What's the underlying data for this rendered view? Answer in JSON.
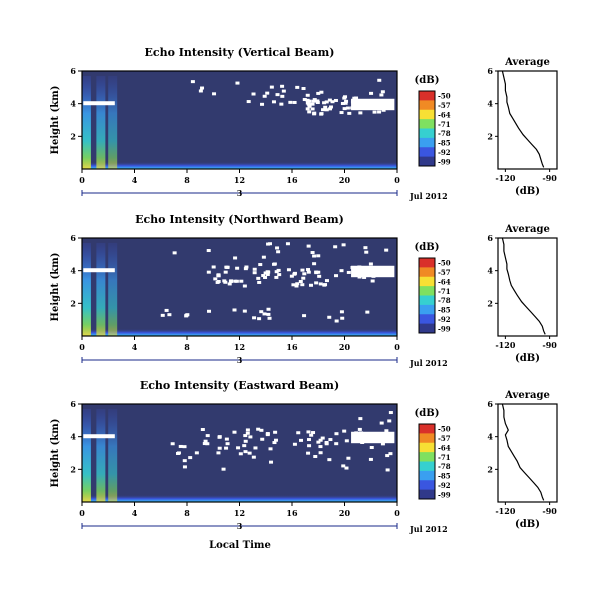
{
  "figure": {
    "date_label": "Jul 2012",
    "xlabel": "Local Time",
    "day_marker": "3",
    "colorbar_unit": "(dB)",
    "colorbar_ticks": [
      "-50",
      "-57",
      "-64",
      "-71",
      "-78",
      "-85",
      "-92",
      "-99"
    ],
    "colorbar_colors": [
      "#d9302a",
      "#f08a24",
      "#f7e034",
      "#7fe060",
      "#36d0d0",
      "#3a9ff0",
      "#3a56e0",
      "#30398a"
    ],
    "background_color": "#323a6e"
  },
  "chart_data": [
    {
      "type": "heatmap",
      "title": "Echo Intensity (Vertical Beam)",
      "ylabel": "Height (km)",
      "x_ticks": [
        "0",
        "4",
        "8",
        "12",
        "16",
        "20",
        "0"
      ],
      "y_ticks": [
        "6",
        "4",
        "2"
      ],
      "xlim": [
        0,
        24
      ],
      "ylim": [
        0,
        6
      ],
      "side_panel": {
        "type": "line",
        "title": "Average",
        "xlabel": "(dB)",
        "x_ticks": [
          "-120",
          "-90"
        ],
        "y_ticks": [
          "6",
          "4",
          "2"
        ],
        "xlim": [
          -125,
          -85
        ],
        "ylim": [
          0,
          6
        ],
        "x": [
          -122,
          -121,
          -120,
          -120,
          -119,
          -119,
          -118,
          -117,
          -115,
          -113,
          -111,
          -108,
          -105,
          -102,
          -99,
          -97,
          -96,
          -95,
          -94
        ],
        "y": [
          6.0,
          5.6,
          5.2,
          4.8,
          4.4,
          4.1,
          3.8,
          3.4,
          3.1,
          2.8,
          2.5,
          2.1,
          1.8,
          1.5,
          1.2,
          0.9,
          0.6,
          0.3,
          0.1
        ]
      }
    },
    {
      "type": "heatmap",
      "title": "Echo Intensity (Northward Beam)",
      "ylabel": "Height (km)",
      "x_ticks": [
        "0",
        "4",
        "8",
        "12",
        "16",
        "20",
        "0"
      ],
      "y_ticks": [
        "6",
        "4",
        "2"
      ],
      "xlim": [
        0,
        24
      ],
      "ylim": [
        0,
        6
      ],
      "side_panel": {
        "type": "line",
        "title": "Average",
        "xlabel": "(dB)",
        "x_ticks": [
          "-120",
          "-90"
        ],
        "y_ticks": [
          "6",
          "4",
          "2"
        ],
        "xlim": [
          -125,
          -85
        ],
        "ylim": [
          0,
          6
        ],
        "x": [
          -122,
          -121,
          -121,
          -120,
          -119,
          -119,
          -118,
          -117,
          -116,
          -114,
          -112,
          -109,
          -106,
          -103,
          -100,
          -97,
          -95,
          -94,
          -93
        ],
        "y": [
          6.0,
          5.6,
          5.2,
          4.8,
          4.4,
          4.1,
          3.8,
          3.4,
          3.1,
          2.8,
          2.5,
          2.1,
          1.8,
          1.5,
          1.2,
          0.9,
          0.6,
          0.3,
          0.1
        ]
      }
    },
    {
      "type": "heatmap",
      "title": "Echo Intensity (Eastward Beam)",
      "ylabel": "Height (km)",
      "x_ticks": [
        "0",
        "4",
        "8",
        "12",
        "16",
        "20",
        "0"
      ],
      "y_ticks": [
        "6",
        "4",
        "2"
      ],
      "xlim": [
        0,
        24
      ],
      "ylim": [
        0,
        6
      ],
      "side_panel": {
        "type": "line",
        "title": "Average",
        "xlabel": "(dB)",
        "x_ticks": [
          "-120",
          "-90"
        ],
        "y_ticks": [
          "6",
          "4",
          "2"
        ],
        "xlim": [
          -125,
          -85
        ],
        "ylim": [
          0,
          6
        ],
        "x": [
          -122,
          -121,
          -121,
          -120,
          -118,
          -120,
          -119,
          -118,
          -116,
          -114,
          -112,
          -110,
          -107,
          -104,
          -101,
          -98,
          -96,
          -95,
          -94
        ],
        "y": [
          6.0,
          5.6,
          5.2,
          4.8,
          4.4,
          4.1,
          3.8,
          3.4,
          3.1,
          2.8,
          2.5,
          2.1,
          1.8,
          1.5,
          1.2,
          0.9,
          0.6,
          0.3,
          0.1
        ]
      }
    }
  ]
}
